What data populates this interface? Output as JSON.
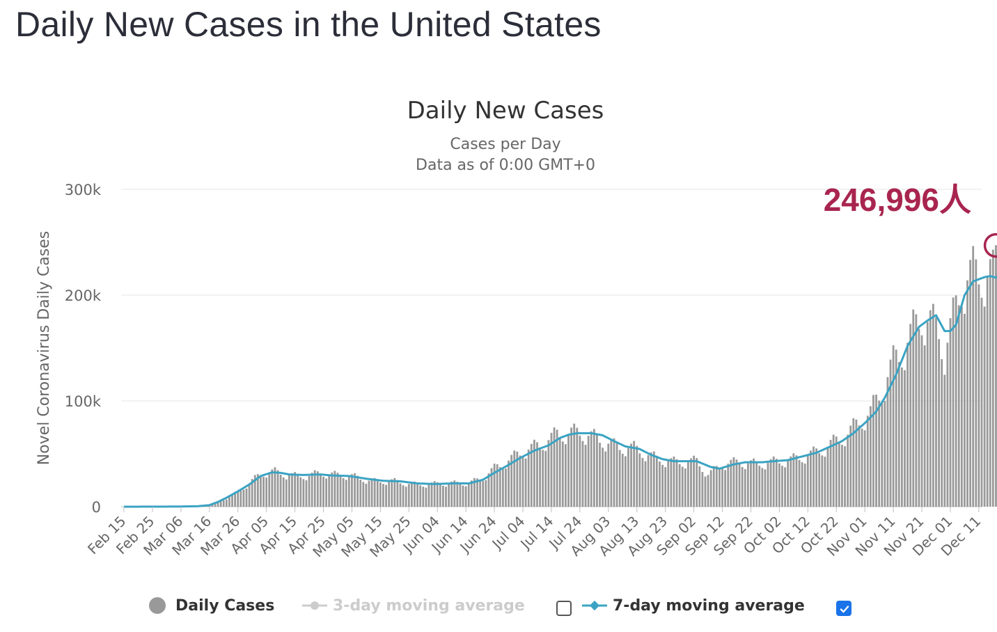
{
  "page": {
    "title": "Daily New Cases in the United States"
  },
  "chart_data": {
    "type": "bar",
    "title": "Daily New Cases",
    "subtitle": "Cases per Day",
    "subtitle2": "Data as of 0:00 GMT+0",
    "xlabel": "",
    "ylabel": "Novel Coronavirus Daily Cases",
    "ylim": [
      0,
      300000
    ],
    "yticks": [
      0,
      100000,
      200000,
      300000
    ],
    "ytick_labels": [
      "0",
      "100k",
      "200k",
      "300k"
    ],
    "grid": true,
    "x_start": "2020-02-15",
    "xtick_labels": [
      "Feb 15",
      "Feb 25",
      "Mar 06",
      "Mar 16",
      "Mar 26",
      "Apr 05",
      "Apr 15",
      "Apr 25",
      "May 05",
      "May 15",
      "May 25",
      "Jun 04",
      "Jun 14",
      "Jun 24",
      "Jul 04",
      "Jul 14",
      "Jul 24",
      "Aug 03",
      "Aug 13",
      "Aug 23",
      "Sep 02",
      "Sep 12",
      "Sep 22",
      "Oct 02",
      "Oct 12",
      "Oct 22",
      "Nov 01",
      "Nov 11",
      "Nov 21",
      "Dec 01",
      "Dec 11"
    ],
    "series": [
      {
        "name": "Daily Cases",
        "color": "#999999",
        "anchors": [
          [
            "2020-02-15",
            0
          ],
          [
            "2020-03-05",
            200
          ],
          [
            "2020-03-12",
            600
          ],
          [
            "2020-03-16",
            1500
          ],
          [
            "2020-03-19",
            4000
          ],
          [
            "2020-03-22",
            8000
          ],
          [
            "2020-03-26",
            14000
          ],
          [
            "2020-03-30",
            22000
          ],
          [
            "2020-04-03",
            31000
          ],
          [
            "2020-04-05",
            32000
          ],
          [
            "2020-04-08",
            33000
          ],
          [
            "2020-04-12",
            30000
          ],
          [
            "2020-04-15",
            29000
          ],
          [
            "2020-04-20",
            29000
          ],
          [
            "2020-04-24",
            32000
          ],
          [
            "2020-04-28",
            30000
          ],
          [
            "2020-05-02",
            30000
          ],
          [
            "2020-05-06",
            28000
          ],
          [
            "2020-05-12",
            24000
          ],
          [
            "2020-05-20",
            24000
          ],
          [
            "2020-05-26",
            21000
          ],
          [
            "2020-06-01",
            21000
          ],
          [
            "2020-06-06",
            22000
          ],
          [
            "2020-06-12",
            22000
          ],
          [
            "2020-06-16",
            23000
          ],
          [
            "2020-06-20",
            27000
          ],
          [
            "2020-06-24",
            36000
          ],
          [
            "2020-06-28",
            42000
          ],
          [
            "2020-07-04",
            52000
          ],
          [
            "2020-07-10",
            58000
          ],
          [
            "2020-07-16",
            68000
          ],
          [
            "2020-07-20",
            69000
          ],
          [
            "2020-07-24",
            70000
          ],
          [
            "2020-07-28",
            66000
          ],
          [
            "2020-08-01",
            62000
          ],
          [
            "2020-08-06",
            56000
          ],
          [
            "2020-08-12",
            55000
          ],
          [
            "2020-08-16",
            50000
          ],
          [
            "2020-08-20",
            45000
          ],
          [
            "2020-08-26",
            42000
          ],
          [
            "2020-08-31",
            42000
          ],
          [
            "2020-09-03",
            43000
          ],
          [
            "2020-09-07",
            30000
          ],
          [
            "2020-09-12",
            40000
          ],
          [
            "2020-09-18",
            42000
          ],
          [
            "2020-09-24",
            40000
          ],
          [
            "2020-09-30",
            42000
          ],
          [
            "2020-10-06",
            44000
          ],
          [
            "2020-10-12",
            48000
          ],
          [
            "2020-10-18",
            55000
          ],
          [
            "2020-10-22",
            62000
          ],
          [
            "2020-10-26",
            68000
          ],
          [
            "2020-10-30",
            80000
          ],
          [
            "2020-11-03",
            88000
          ],
          [
            "2020-11-07",
            110000
          ],
          [
            "2020-11-11",
            135000
          ],
          [
            "2020-11-15",
            150000
          ],
          [
            "2020-11-19",
            170000
          ],
          [
            "2020-11-21",
            180000
          ],
          [
            "2020-11-24",
            172000
          ],
          [
            "2020-11-27",
            165000
          ],
          [
            "2020-11-29",
            145000
          ],
          [
            "2020-12-02",
            175000
          ],
          [
            "2020-12-05",
            210000
          ],
          [
            "2020-12-09",
            218000
          ],
          [
            "2020-12-13",
            220000
          ],
          [
            "2020-12-16",
            215000
          ],
          [
            "2020-12-18",
            246996
          ]
        ]
      },
      {
        "name": "7-day moving average",
        "color": "#3aa3c3",
        "anchors": [
          [
            "2020-02-15",
            0
          ],
          [
            "2020-03-05",
            150
          ],
          [
            "2020-03-12",
            500
          ],
          [
            "2020-03-16",
            1500
          ],
          [
            "2020-03-19",
            4500
          ],
          [
            "2020-03-22",
            8500
          ],
          [
            "2020-03-26",
            14500
          ],
          [
            "2020-03-30",
            21000
          ],
          [
            "2020-04-03",
            29000
          ],
          [
            "2020-04-07",
            32500
          ],
          [
            "2020-04-10",
            32000
          ],
          [
            "2020-04-13",
            30500
          ],
          [
            "2020-04-18",
            30000
          ],
          [
            "2020-04-24",
            30500
          ],
          [
            "2020-04-28",
            29500
          ],
          [
            "2020-05-04",
            29000
          ],
          [
            "2020-05-10",
            26500
          ],
          [
            "2020-05-16",
            24500
          ],
          [
            "2020-05-22",
            24000
          ],
          [
            "2020-05-28",
            22000
          ],
          [
            "2020-06-03",
            21500
          ],
          [
            "2020-06-09",
            22000
          ],
          [
            "2020-06-15",
            22000
          ],
          [
            "2020-06-20",
            25500
          ],
          [
            "2020-06-24",
            32000
          ],
          [
            "2020-06-28",
            38000
          ],
          [
            "2020-07-03",
            46000
          ],
          [
            "2020-07-08",
            53000
          ],
          [
            "2020-07-13",
            58000
          ],
          [
            "2020-07-17",
            65000
          ],
          [
            "2020-07-20",
            68000
          ],
          [
            "2020-07-23",
            69500
          ],
          [
            "2020-07-28",
            69500
          ],
          [
            "2020-08-01",
            67500
          ],
          [
            "2020-08-05",
            62000
          ],
          [
            "2020-08-09",
            57000
          ],
          [
            "2020-08-14",
            54500
          ],
          [
            "2020-08-18",
            49000
          ],
          [
            "2020-08-22",
            45000
          ],
          [
            "2020-08-26",
            43000
          ],
          [
            "2020-09-03",
            43000
          ],
          [
            "2020-09-08",
            37500
          ],
          [
            "2020-09-11",
            36000
          ],
          [
            "2020-09-16",
            40000
          ],
          [
            "2020-09-20",
            42000
          ],
          [
            "2020-09-26",
            42000
          ],
          [
            "2020-09-30",
            43000
          ],
          [
            "2020-10-05",
            44000
          ],
          [
            "2020-10-10",
            47500
          ],
          [
            "2020-10-15",
            51000
          ],
          [
            "2020-10-20",
            57000
          ],
          [
            "2020-10-24",
            62000
          ],
          [
            "2020-10-28",
            69500
          ],
          [
            "2020-11-01",
            79000
          ],
          [
            "2020-11-05",
            90000
          ],
          [
            "2020-11-08",
            103000
          ],
          [
            "2020-11-12",
            125000
          ],
          [
            "2020-11-16",
            152000
          ],
          [
            "2020-11-20",
            170000
          ],
          [
            "2020-11-23",
            176000
          ],
          [
            "2020-11-26",
            181000
          ],
          [
            "2020-11-29",
            166000
          ],
          [
            "2020-12-01",
            166000
          ],
          [
            "2020-12-03",
            172000
          ],
          [
            "2020-12-06",
            200000
          ],
          [
            "2020-12-09",
            213000
          ],
          [
            "2020-12-13",
            217000
          ],
          [
            "2020-12-15",
            218000
          ],
          [
            "2020-12-17",
            216500
          ],
          [
            "2020-12-18",
            219000
          ]
        ]
      }
    ],
    "annotation": {
      "text": "246,996人",
      "date": "2020-12-18",
      "value": 246996,
      "color": "#a8254f"
    },
    "legend": {
      "position": "bottom",
      "items": [
        {
          "label": "Daily Cases",
          "enabled": true,
          "color": "#666666",
          "marker": "circle"
        },
        {
          "label": "3-day moving average",
          "enabled": false,
          "color": "#cccccc",
          "marker": "line-circle",
          "checkbox_checked": false
        },
        {
          "label": "7-day moving average",
          "enabled": true,
          "color": "#3aa3c3",
          "marker": "line-diamond",
          "checkbox_checked": true
        }
      ]
    }
  }
}
